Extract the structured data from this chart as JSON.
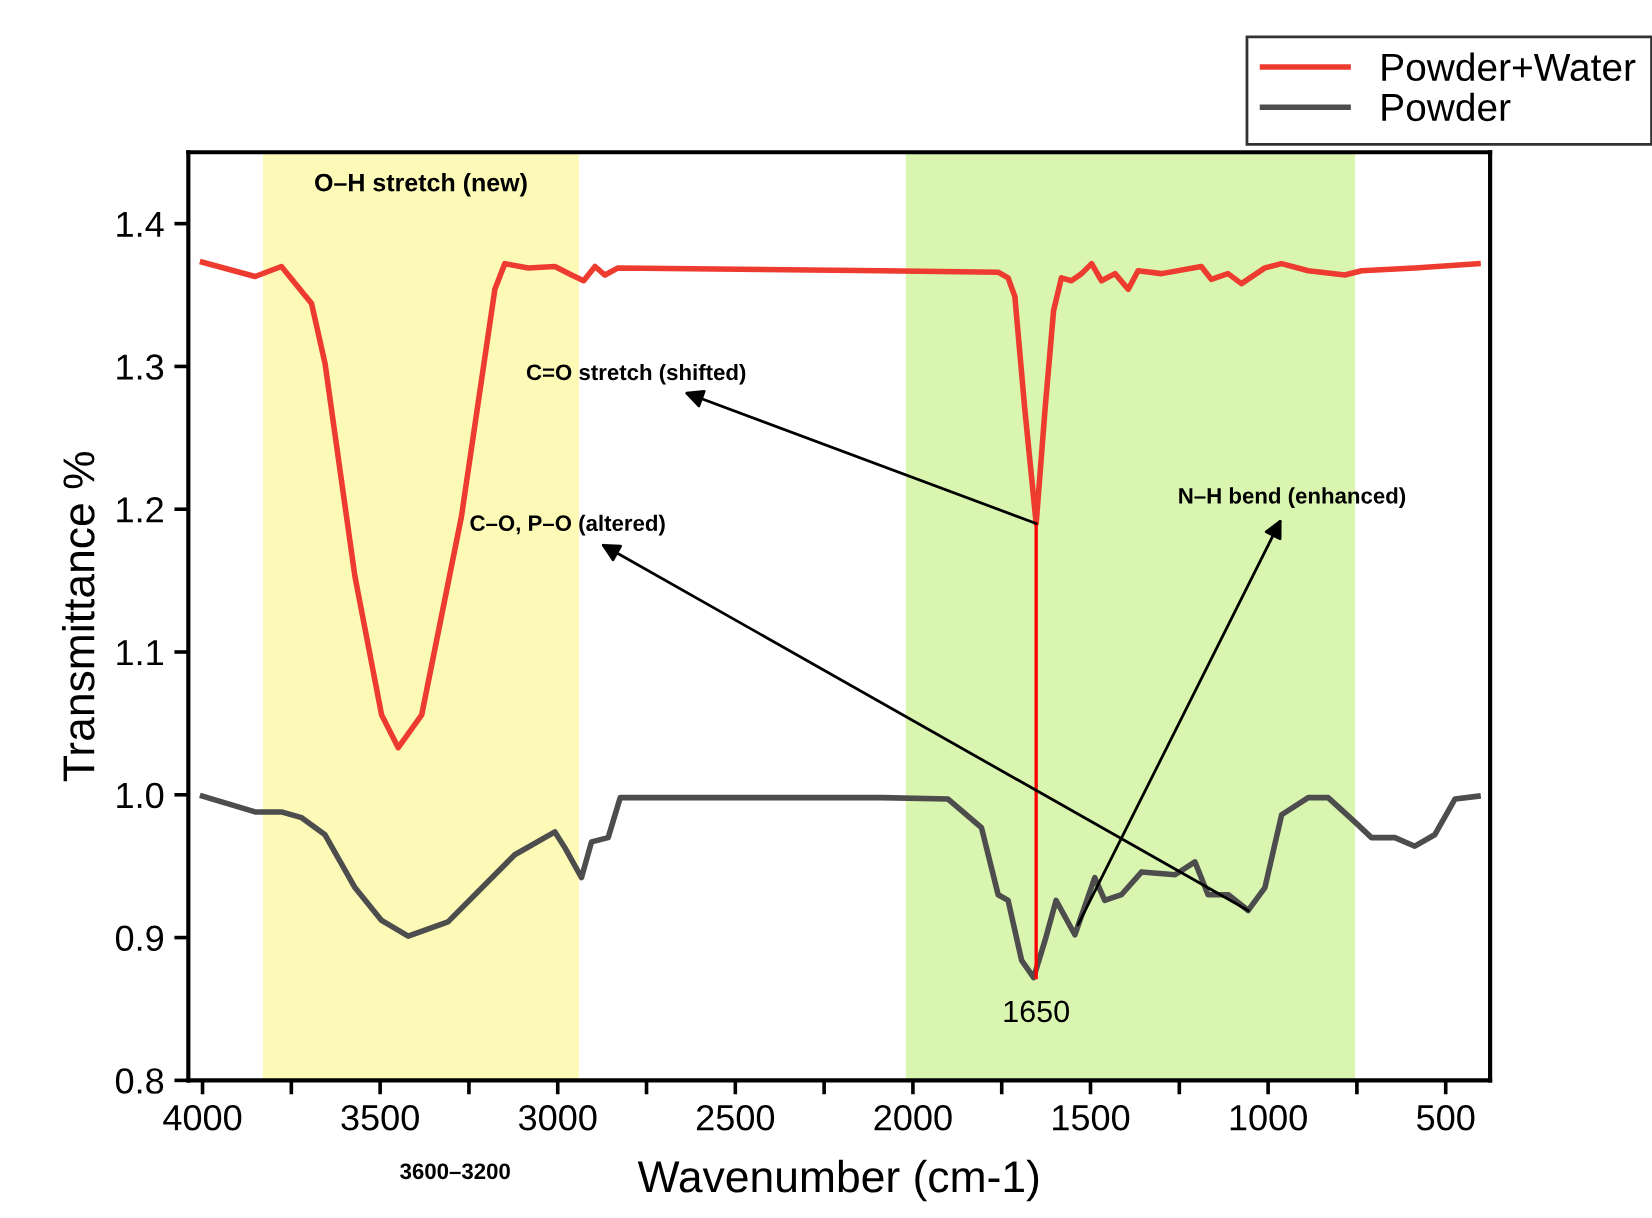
{
  "chart_data": {
    "type": "line",
    "xlabel": "Wavenumber (cm-1)",
    "ylabel": "Transmittance %",
    "xlim": [
      4040,
      375
    ],
    "ylim": [
      0.8,
      1.45
    ],
    "xticks": [
      4000,
      {
        "value": 3750,
        "label": null
      },
      3500,
      {
        "value": 3250,
        "label": null
      },
      3000,
      {
        "value": 2750,
        "label": null
      },
      2500,
      {
        "value": 2250,
        "label": null
      },
      2000,
      {
        "value": 1750,
        "label": null
      },
      1500,
      {
        "value": 1250,
        "label": null
      },
      1000,
      {
        "value": 750,
        "label": null
      },
      500
    ],
    "yticks": [
      0.8,
      0.9,
      {
        "value": 1.0,
        "label": "1.0"
      },
      1.1,
      1.2,
      1.3,
      1.4
    ],
    "grid": false,
    "legend": "top right",
    "series": [
      {
        "name": "Powder+Water",
        "color": "#ee3b2f",
        "x": [
          4000,
          3852,
          3778,
          3693,
          3655,
          3571,
          3496,
          3449,
          3383,
          3271,
          3177,
          3149,
          3083,
          3008,
          2961,
          2927,
          2895,
          2867,
          2830,
          2088,
          1760,
          1732,
          1713,
          1685,
          1653,
          1628,
          1604,
          1582,
          1554,
          1525,
          1497,
          1469,
          1431,
          1394,
          1366,
          1300,
          1188,
          1160,
          1113,
          1075,
          1009,
          962,
          887,
          784,
          737,
          587,
          409
        ],
        "values": [
          1.373,
          1.363,
          1.37,
          1.344,
          1.302,
          1.153,
          1.056,
          1.033,
          1.056,
          1.195,
          1.354,
          1.372,
          1.369,
          1.37,
          1.364,
          1.36,
          1.37,
          1.364,
          1.369,
          1.367,
          1.366,
          1.362,
          1.349,
          1.27,
          1.19,
          1.27,
          1.339,
          1.362,
          1.36,
          1.365,
          1.372,
          1.36,
          1.365,
          1.354,
          1.367,
          1.365,
          1.37,
          1.361,
          1.365,
          1.358,
          1.369,
          1.372,
          1.367,
          1.364,
          1.367,
          1.369,
          1.372
        ]
      },
      {
        "name": "Powder",
        "color": "#4d4d4d",
        "x": [
          4000,
          3852,
          3778,
          3721,
          3655,
          3571,
          3496,
          3421,
          3309,
          3233,
          3121,
          3008,
          2980,
          2933,
          2905,
          2858,
          2824,
          2777,
          2088,
          1901,
          1807,
          1760,
          1732,
          1694,
          1660,
          1628,
          1597,
          1544,
          1488,
          1460,
          1413,
          1356,
          1262,
          1206,
          1169,
          1112,
          1056,
          1009,
          962,
          887,
          831,
          756,
          709,
          643,
          587,
          531,
          474,
          409
        ],
        "values": [
          0.999,
          0.988,
          0.988,
          0.984,
          0.972,
          0.935,
          0.912,
          0.901,
          0.911,
          0.93,
          0.958,
          0.974,
          0.963,
          0.942,
          0.967,
          0.97,
          0.998,
          0.998,
          0.998,
          0.997,
          0.977,
          0.93,
          0.926,
          0.884,
          0.872,
          0.898,
          0.926,
          0.902,
          0.942,
          0.926,
          0.93,
          0.946,
          0.944,
          0.953,
          0.93,
          0.93,
          0.919,
          0.935,
          0.986,
          0.998,
          0.998,
          0.981,
          0.97,
          0.97,
          0.964,
          0.972,
          0.997,
          0.999
        ]
      },
      {
        "color": "#ff0000",
        "x": [
          1653,
          1653
        ],
        "values": [
          1.19,
          0.872
        ]
      }
    ],
    "bands": [
      {
        "axis": "x",
        "from": 3830,
        "to": 2940,
        "label": "O–H stretch (new)",
        "color": "#fdfab8"
      },
      {
        "axis": "x",
        "from": 2020,
        "to": 755,
        "color": "#d9f5b0"
      }
    ],
    "annotations": [
      {
        "text": "C=O stretch (shifted)",
        "x": 1653,
        "y": 1.19
      },
      {
        "text": "C–O, P–O (altered)",
        "x": 1056,
        "y": 0.919
      },
      {
        "text": "N–H bend (enhanced)",
        "x": 1535,
        "y": 0.909
      },
      {
        "text": "1650",
        "x": 1653,
        "y": 0.872
      },
      "3600–3200"
    ]
  }
}
